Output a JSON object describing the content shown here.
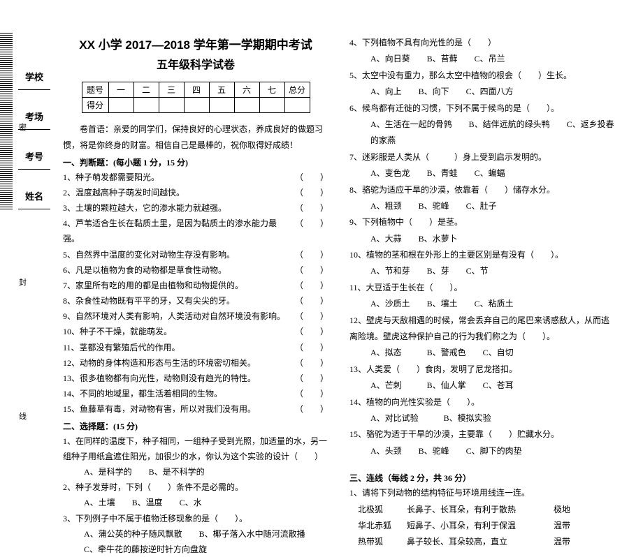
{
  "sidebar": {
    "fields": [
      "学校",
      "考场",
      "考号",
      "姓名"
    ],
    "seal_chars": [
      "密",
      "封",
      "线"
    ]
  },
  "header": {
    "title_line1": "XX 小学 2017—2018 学年第一学期期中考试",
    "title_line2": "五年级科学试卷"
  },
  "score_table": {
    "row1": [
      "题号",
      "一",
      "二",
      "三",
      "四",
      "五",
      "六",
      "七",
      "总分"
    ],
    "row2_label": "得分"
  },
  "preface": {
    "p1": "卷首语：亲爱的同学们，保持良好的心理状态，养成良好的做题习惯，将是你终身的财富。相信自己是最棒的，祝你取得好成绩！"
  },
  "sections": {
    "s1_head": "一、判断题：(每小题 1 分，15 分)",
    "s2_head": "二、选择题：(15 分)",
    "s3_head": "三、连线（每线 2 分，共 36 分）"
  },
  "judge": [
    "1、种子萌发都需要阳光。",
    "2、温度越高种子萌发时间越快。",
    "3、土壤的颗粒越大，它的渗水能力就越强。",
    "4、芦苇适合生长在黏质土里，是因为黏质土的渗水能力最强。",
    "5、自然界中温度的变化对动物生存没有影响。",
    "6、凡是以植物为食的动物都是草食性动物。",
    "7、家里所有吃的用的都是由植物和动物提供的。",
    "8、杂食性动物既有平平的牙，又有尖尖的牙。",
    "9、自然环境对人类有影响，人类活动对自然环境没有影响。",
    "10、种子不干燥，就能萌发。",
    "11、茎都没有繁殖后代的作用。",
    "12、动物的身体构造和形态与生活的环境密切相关。",
    "13、很多植物都有向光性，动物则没有趋光的特性。",
    "14、不同的地域里，都生活着相同的生物。",
    "15、鱼藤草有毒，对动物有害，所以对我们没有用。"
  ],
  "choice_left": [
    {
      "stem": "1、在同样的温度下，种子相同，一组种子受到光照，加适量的水，另一组种子用纸盒遮住阳光，加很少的水，你认为这个实验的设计（　　）",
      "opts": "A、是科学的　　B、是不科学的"
    },
    {
      "stem": "2、种子发芽时，下列（　　）条件不是必需的。",
      "opts": "A、土壤　　B、温度　　C、水"
    },
    {
      "stem": "3、下列例子中不属于植物迁移现象的是（　　）。",
      "opts": "A、蒲公英的种子随风飘散　　B、椰子落入水中随河流散播\nC、牵牛花的藤按逆时针方向盘旋"
    }
  ],
  "choice_right": [
    {
      "stem": "4、下列植物不具有向光性的是（　　）",
      "opts": "A、向日葵　　B、苔藓　　C、吊兰"
    },
    {
      "stem": "5、太空中没有重力，那么太空中植物的根会（　　）生长。",
      "opts": "A、向上　　B、向下　　C、四面八方"
    },
    {
      "stem": "6、候鸟都有迁徙的习惯，下列不属于候鸟的是（　　）。",
      "opts": "A、生活在一起的骨鹑　　B、结伴远航的绿头鸭　　C、返乡投春的家燕"
    },
    {
      "stem": "7、迷彩服是人类从（　　　）身上受到启示发明的。",
      "opts": "A、变色龙　　B、青蛙　　C、蝙蝠"
    },
    {
      "stem": "8、骆驼为适应干旱的沙漠，依靠着（　　）储存水分。",
      "opts": "A、粗颈　　B、驼峰　　C、肚子"
    },
    {
      "stem": "9、下列植物中（　　）是茎。",
      "opts": "A、大蒜　　B、水萝卜"
    },
    {
      "stem": "10、植物的茎和根在外形上的主要区别是有没有（　　）。",
      "opts": "A、节和芽　　B、芽　　C、节"
    },
    {
      "stem": "11、大豆适于生长在（　　）。",
      "opts": "A、沙质土　　B、壤土　　C、粘质土"
    },
    {
      "stem": "12、壁虎与天敌相遇的时候，常会丢弃自己的尾巴来诱惑敌人，从而逃离险境。壁虎这种保护自己的行为我们称之为（　　）。",
      "opts": "A、拟态　　　B、警戒色　　C、自切"
    },
    {
      "stem": "13、人类爱（　　）食肉，发明了尼龙搭扣。",
      "opts": "A、芒刺　　　B、仙人掌　　C、苍耳"
    },
    {
      "stem": "14、植物的向光性实验是（　　）。",
      "opts": "A、对比试验　　　B、模拟实验"
    },
    {
      "stem": "15、骆驼为适于干旱的沙漠，主要靠（　　）贮藏水分。",
      "opts": "A、头颈　　B、驼峰　　C、脚下的肉垫"
    }
  ],
  "match": {
    "intro": "1、请将下列动物的结构特征与环境用线连一连。",
    "rows": [
      [
        "北极狐",
        "长鼻子、长耳朵，有利于散热",
        "极地"
      ],
      [
        "华北赤狐",
        "短鼻子、小耳朵，有利于保温",
        "温带"
      ],
      [
        "热带狐",
        "鼻子较长、耳朵较高，直立",
        "温带"
      ]
    ]
  },
  "paren_blank": "（　　）"
}
